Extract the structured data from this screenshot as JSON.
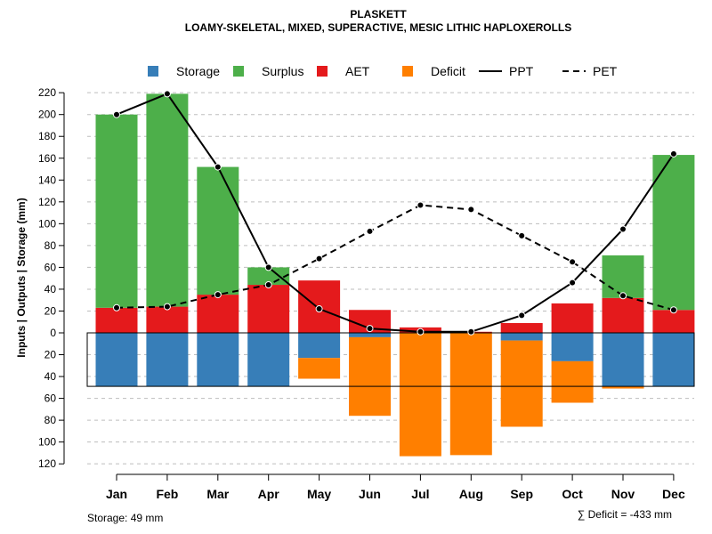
{
  "chart_data": {
    "type": "bar",
    "title": "PLASKETT",
    "subtitle": "LOAMY-SKELETAL, MIXED, SUPERACTIVE, MESIC LITHIC HAPLOXEROLLS",
    "ylabel": "Inputs | Outputs | Storage     (mm)",
    "ylim": [
      -120,
      220
    ],
    "yticks": [
      220,
      200,
      180,
      160,
      140,
      120,
      100,
      80,
      60,
      40,
      20,
      0,
      -20,
      -40,
      -60,
      -80,
      -100,
      -120
    ],
    "ytick_labels": [
      "220",
      "200",
      "180",
      "160",
      "140",
      "120",
      "100",
      "80",
      "60",
      "40",
      "20",
      "0",
      "20",
      "40",
      "60",
      "80",
      "100",
      "120"
    ],
    "categories": [
      "Jan",
      "Feb",
      "Mar",
      "Apr",
      "May",
      "Jun",
      "Jul",
      "Aug",
      "Sep",
      "Oct",
      "Nov",
      "Dec"
    ],
    "legend": {
      "position": "top",
      "items": [
        {
          "label": "Storage",
          "kind": "box",
          "color": "#377EB8"
        },
        {
          "label": "Surplus",
          "kind": "box",
          "color": "#4DAF4A"
        },
        {
          "label": "AET",
          "kind": "box",
          "color": "#E41A1C"
        },
        {
          "label": "Deficit",
          "kind": "box",
          "color": "#FF7F00"
        },
        {
          "label": "PPT",
          "kind": "solid",
          "color": "#000000"
        },
        {
          "label": "PET",
          "kind": "dashed",
          "color": "#000000"
        }
      ]
    },
    "series": [
      {
        "name": "AET",
        "color": "#E41A1C",
        "values": [
          23,
          24,
          35,
          44,
          48,
          21,
          5,
          1,
          9,
          27,
          32,
          21
        ]
      },
      {
        "name": "Surplus",
        "color": "#4DAF4A",
        "values": [
          177,
          195,
          117,
          16,
          0,
          0,
          0,
          0,
          0,
          0,
          39,
          142
        ]
      },
      {
        "name": "Storage",
        "color": "#377EB8",
        "values": [
          49,
          49,
          49,
          49,
          23,
          4,
          0,
          0,
          7,
          26,
          49,
          49
        ]
      },
      {
        "name": "Deficit",
        "color": "#FF7F00",
        "values": [
          0,
          0,
          0,
          0,
          19,
          72,
          113,
          112,
          79,
          38,
          2,
          0
        ]
      },
      {
        "name": "PPT",
        "color": "#000000",
        "values": [
          200,
          219,
          152,
          60,
          22,
          4,
          1,
          1,
          16,
          46,
          95,
          164
        ]
      },
      {
        "name": "PET",
        "color": "#000000",
        "values": [
          23,
          24,
          35,
          44,
          68,
          93,
          117,
          113,
          89,
          65,
          34,
          21
        ]
      }
    ],
    "storage_capacity": 49,
    "grid": true
  },
  "footer": {
    "storage_text": "Storage: 49 mm",
    "deficit_text": "∑ Deficit = -433 mm"
  }
}
